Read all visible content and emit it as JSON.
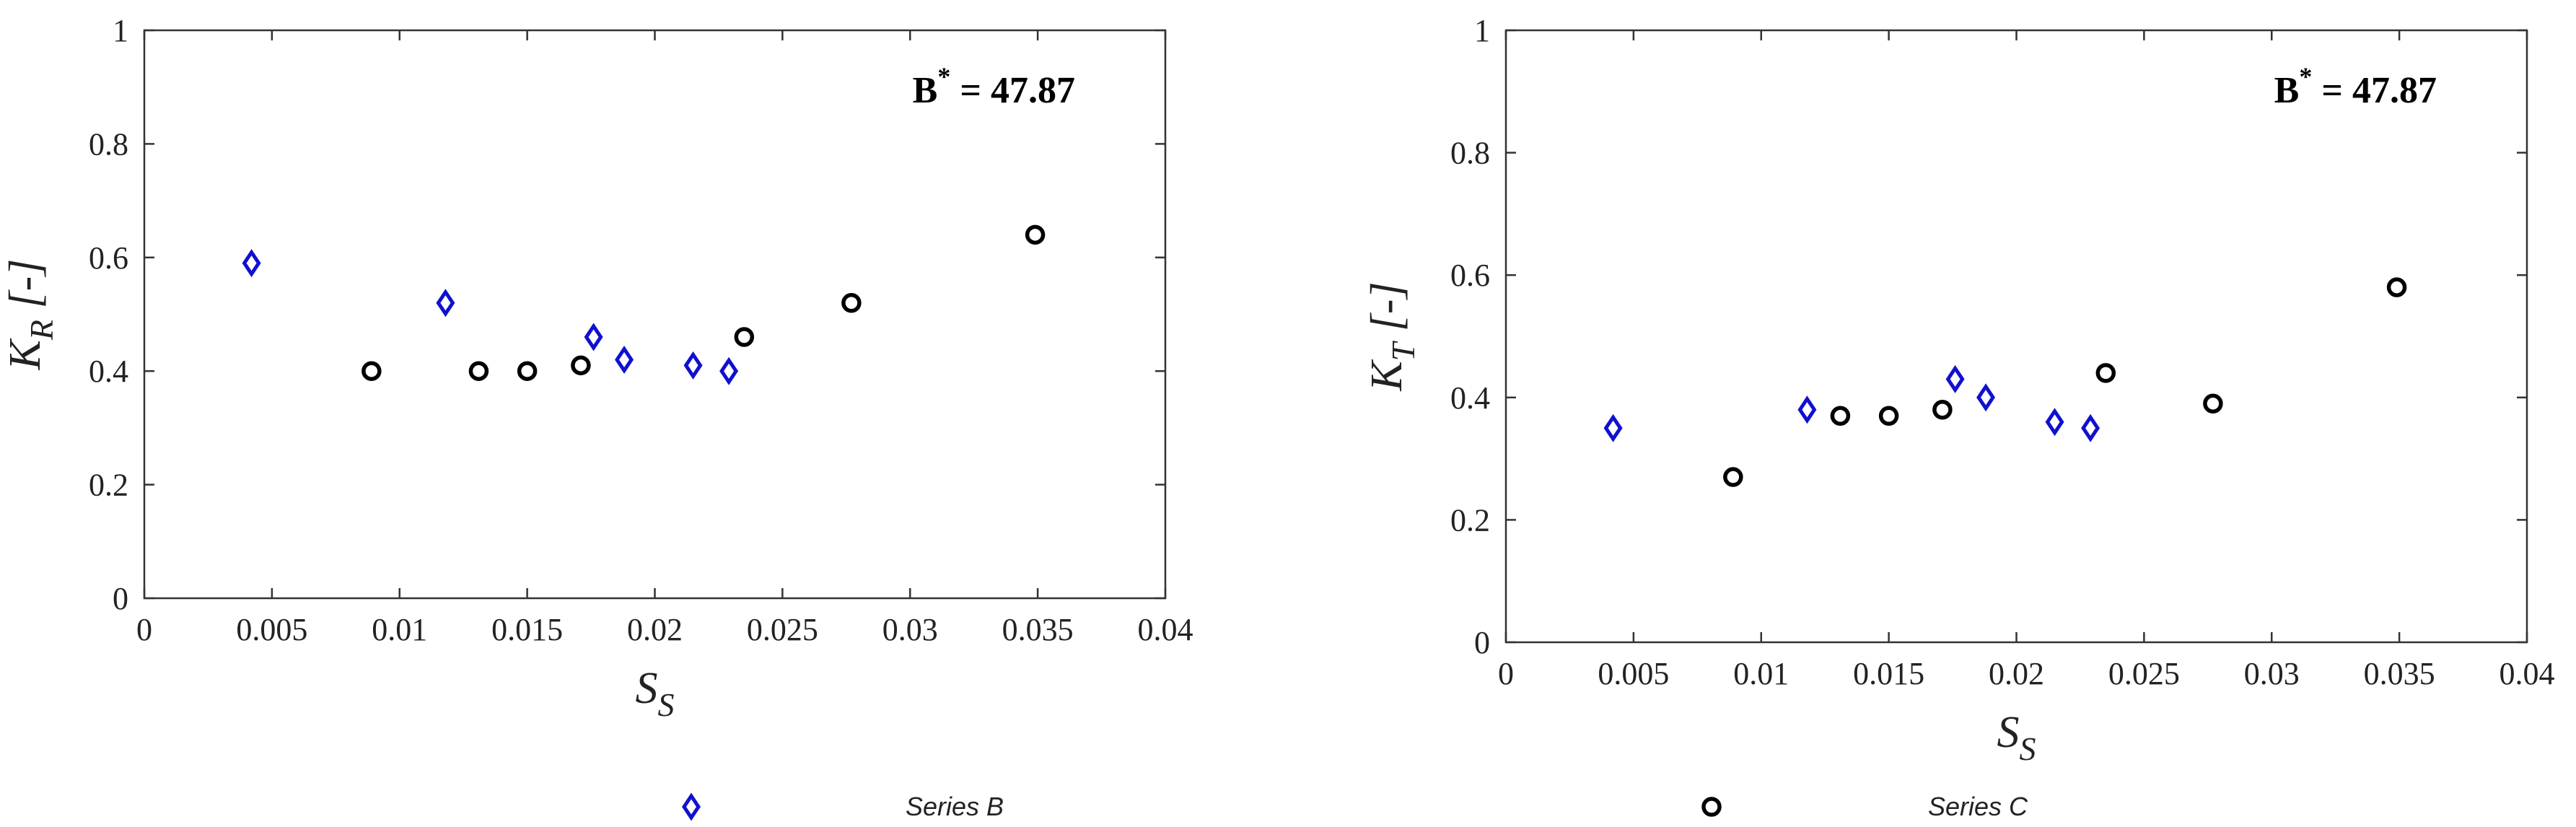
{
  "chart_data": [
    {
      "type": "scatter",
      "xlabel": {
        "main": "S",
        "sub": "S"
      },
      "ylabel": {
        "main": "K",
        "sub": "R",
        "unit": " [-]"
      },
      "xlim": [
        0,
        0.04
      ],
      "ylim": [
        0,
        1
      ],
      "xticks": [
        "0",
        "0.005",
        "0.01",
        "0.015",
        "0.02",
        "0.025",
        "0.03",
        "0.035",
        "0.04"
      ],
      "yticks": [
        "0",
        "0.2",
        "0.4",
        "0.6",
        "0.8",
        "1"
      ],
      "annotation": {
        "main": "B",
        "sup": "*",
        "rest": " = 47.87"
      },
      "grid": false,
      "series": [
        {
          "name": "Series B",
          "marker": "diamond",
          "color": "#1010d0",
          "x": [
            0.0042,
            0.0118,
            0.0176,
            0.0188,
            0.0215,
            0.0229
          ],
          "y": [
            0.59,
            0.52,
            0.46,
            0.42,
            0.41,
            0.4
          ]
        },
        {
          "name": "Series C",
          "marker": "circle",
          "color": "#000000",
          "x": [
            0.0089,
            0.0131,
            0.015,
            0.0171,
            0.0235,
            0.0277,
            0.0349
          ],
          "y": [
            0.4,
            0.4,
            0.4,
            0.41,
            0.46,
            0.52,
            0.64
          ]
        }
      ]
    },
    {
      "type": "scatter",
      "xlabel": {
        "main": "S",
        "sub": "S"
      },
      "ylabel": {
        "main": "K",
        "sub": "T",
        "unit": " [-]"
      },
      "xlim": [
        0,
        0.04
      ],
      "ylim": [
        0,
        1
      ],
      "xticks": [
        "0",
        "0.005",
        "0.01",
        "0.015",
        "0.02",
        "0.025",
        "0.03",
        "0.035",
        "0.04"
      ],
      "yticks": [
        "0",
        "0.2",
        "0.4",
        "0.6",
        "0.8",
        "1"
      ],
      "annotation": {
        "main": "B",
        "sup": "*",
        "rest": " = 47.87"
      },
      "grid": false,
      "series": [
        {
          "name": "Series B",
          "marker": "diamond",
          "color": "#1010d0",
          "x": [
            0.0042,
            0.0118,
            0.0176,
            0.0188,
            0.0215,
            0.0229
          ],
          "y": [
            0.35,
            0.38,
            0.43,
            0.4,
            0.36,
            0.35
          ]
        },
        {
          "name": "Series C",
          "marker": "circle",
          "color": "#000000",
          "x": [
            0.0089,
            0.0131,
            0.015,
            0.0171,
            0.0235,
            0.0277,
            0.0349
          ],
          "y": [
            0.27,
            0.37,
            0.37,
            0.38,
            0.44,
            0.39,
            0.58
          ]
        }
      ]
    }
  ],
  "legend": [
    {
      "label": "Series B",
      "marker": "diamond",
      "color": "#1010d0"
    },
    {
      "label": "Series C",
      "marker": "circle",
      "color": "#000000"
    }
  ]
}
